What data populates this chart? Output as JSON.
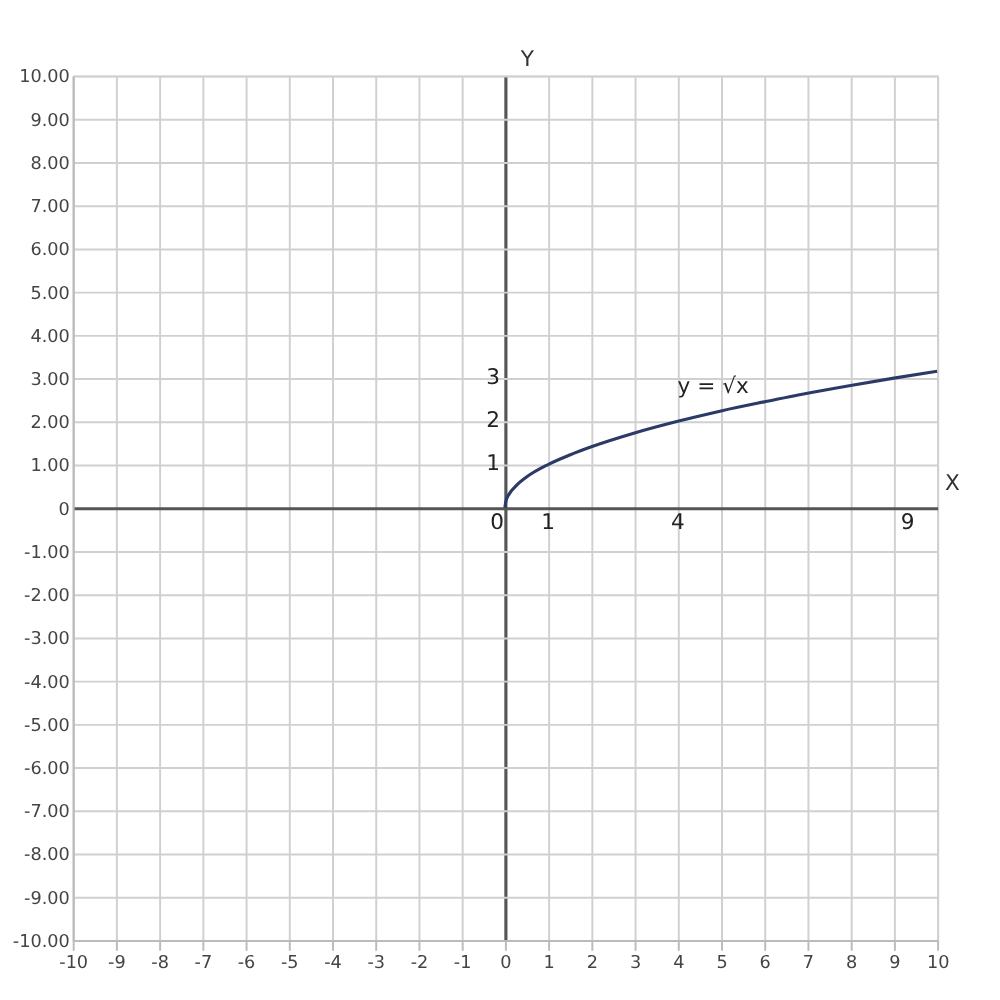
{
  "chart_data": {
    "type": "line",
    "xlabel": "X",
    "ylabel": "Y",
    "x": [
      0,
      0.02,
      0.1,
      0.25,
      0.5,
      1,
      1.5,
      2,
      3,
      4,
      5,
      6,
      7,
      8,
      9,
      10
    ],
    "series": [
      {
        "name": "y = √x",
        "color": "#2b3a67",
        "values": [
          0,
          0.14,
          0.32,
          0.5,
          0.71,
          1,
          1.22,
          1.41,
          1.73,
          2,
          2.24,
          2.45,
          2.65,
          2.83,
          3,
          3.16
        ]
      }
    ],
    "xlim": [
      -10,
      10
    ],
    "ylim": [
      -10,
      10
    ],
    "xticks": [
      -10,
      -9,
      -8,
      -7,
      -6,
      -5,
      -4,
      -3,
      -2,
      -1,
      0,
      1,
      2,
      3,
      4,
      5,
      6,
      7,
      8,
      9,
      10
    ],
    "yticks": [
      {
        "value": -10,
        "label": "-10.00"
      },
      {
        "value": -9,
        "label": "-9.00"
      },
      {
        "value": -8,
        "label": "-8.00"
      },
      {
        "value": -7,
        "label": "-7.00"
      },
      {
        "value": -6,
        "label": "-6.00"
      },
      {
        "value": -5,
        "label": "-5.00"
      },
      {
        "value": -4,
        "label": "-4.00"
      },
      {
        "value": -3,
        "label": "-3.00"
      },
      {
        "value": -2,
        "label": "-2.00"
      },
      {
        "value": -1,
        "label": "-1.00"
      },
      0,
      {
        "value": 1,
        "label": "1.00"
      },
      {
        "value": 2,
        "label": "2.00"
      },
      {
        "value": 3,
        "label": "3.00"
      },
      {
        "value": 4,
        "label": "4.00"
      },
      {
        "value": 5,
        "label": "5.00"
      },
      {
        "value": 6,
        "label": "6.00"
      },
      {
        "value": 7,
        "label": "7.00"
      },
      {
        "value": 8,
        "label": "8.00"
      },
      {
        "value": 9,
        "label": "9.00"
      },
      {
        "value": 10,
        "label": "10.00"
      }
    ],
    "grid": true,
    "line_style": "solid",
    "annotations": [
      "0",
      "1",
      "4",
      "9",
      "1",
      "2",
      "3"
    ]
  }
}
